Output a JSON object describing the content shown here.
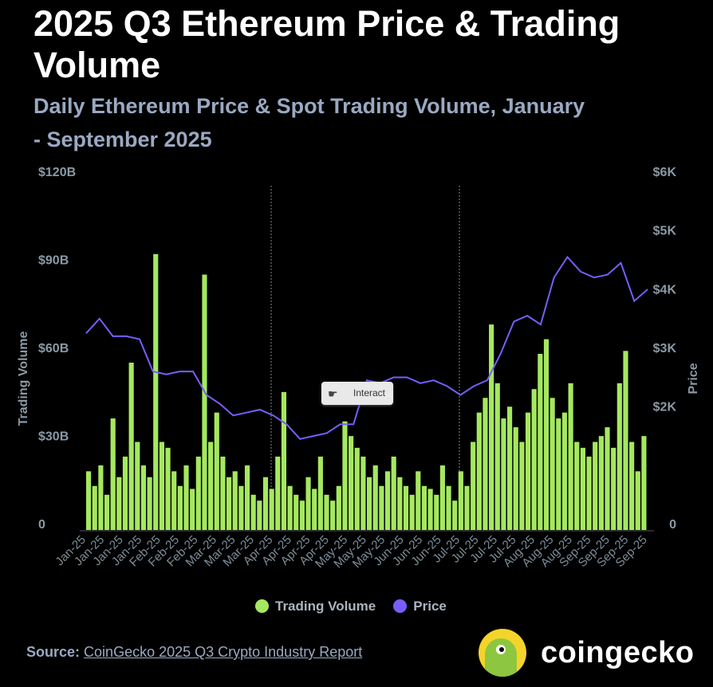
{
  "header": {
    "title": "2025 Q3 Ethereum Price & Trading Volume",
    "subtitle": "Daily Ethereum Price & Spot Trading Volume, January - September 2025"
  },
  "chart_data": {
    "type": "bar+line",
    "title": "2025 Q3 Ethereum Price & Trading Volume",
    "y_left": {
      "label": "Trading Volume",
      "range": [
        0,
        120
      ],
      "unit": "B USD",
      "ticks": [
        "0",
        "$30B",
        "$60B",
        "$90B",
        "$120B"
      ]
    },
    "y_right": {
      "label": "Price",
      "range": [
        0,
        6000
      ],
      "unit": "USD",
      "ticks": [
        "0",
        "$2K",
        "$3K",
        "$4K",
        "$5K",
        "$6K"
      ]
    },
    "x_tick_labels": [
      "Jan-25",
      "Jan-25",
      "Jan-25",
      "Jan-25",
      "Feb-25",
      "Feb-25",
      "Feb-25",
      "Mar-25",
      "Mar-25",
      "Mar-25",
      "Apr-25",
      "Apr-25",
      "Apr-25",
      "Apr-25",
      "May-25",
      "May-25",
      "May-25",
      "Jun-25",
      "Jun-25",
      "Jun-25",
      "Jul-25",
      "Jul-25",
      "Jul-25",
      "Jul-25",
      "Aug-25",
      "Aug-25",
      "Aug-25",
      "Sep-25",
      "Sep-25",
      "Sep-25",
      "Sep-25"
    ],
    "series": [
      {
        "name": "Trading Volume",
        "type": "bar",
        "color": "#a5e85f",
        "sampling": "approx. every 3 days, Jan–Sep 2025",
        "values": [
          20,
          15,
          22,
          12,
          38,
          18,
          25,
          57,
          30,
          22,
          18,
          94,
          30,
          28,
          20,
          15,
          22,
          14,
          25,
          87,
          30,
          40,
          25,
          18,
          20,
          15,
          22,
          12,
          10,
          18,
          14,
          25,
          47,
          15,
          12,
          10,
          18,
          14,
          25,
          12,
          10,
          15,
          37,
          32,
          28,
          25,
          18,
          22,
          15,
          20,
          25,
          18,
          15,
          12,
          20,
          15,
          14,
          12,
          22,
          15,
          10,
          20,
          15,
          30,
          40,
          45,
          70,
          50,
          38,
          42,
          35,
          30,
          40,
          48,
          60,
          65,
          45,
          38,
          40,
          50,
          30,
          28,
          25,
          30,
          32,
          35,
          28,
          50,
          61,
          30,
          20,
          32
        ]
      },
      {
        "name": "Price",
        "type": "line",
        "color": "#7b5cff",
        "sampling": "approx. weekly, in USD thousands",
        "values": [
          3.35,
          3.6,
          3.3,
          3.3,
          3.25,
          2.7,
          2.65,
          2.7,
          2.7,
          2.3,
          2.15,
          1.95,
          2.0,
          2.05,
          1.95,
          1.8,
          1.55,
          1.6,
          1.65,
          1.8,
          1.8,
          2.55,
          2.5,
          2.6,
          2.6,
          2.5,
          2.55,
          2.45,
          2.3,
          2.45,
          2.55,
          3.0,
          3.55,
          3.65,
          3.5,
          4.3,
          4.65,
          4.4,
          4.3,
          4.35,
          4.55,
          3.9,
          4.1
        ]
      }
    ],
    "legend": {
      "position": "bottom",
      "entries": [
        "Trading Volume",
        "Price"
      ]
    },
    "grid": false
  },
  "interact_label": "Interact",
  "source": {
    "label": "Source:",
    "link": "CoinGecko 2025 Q3 Crypto Industry Report"
  },
  "brand": "coingecko"
}
